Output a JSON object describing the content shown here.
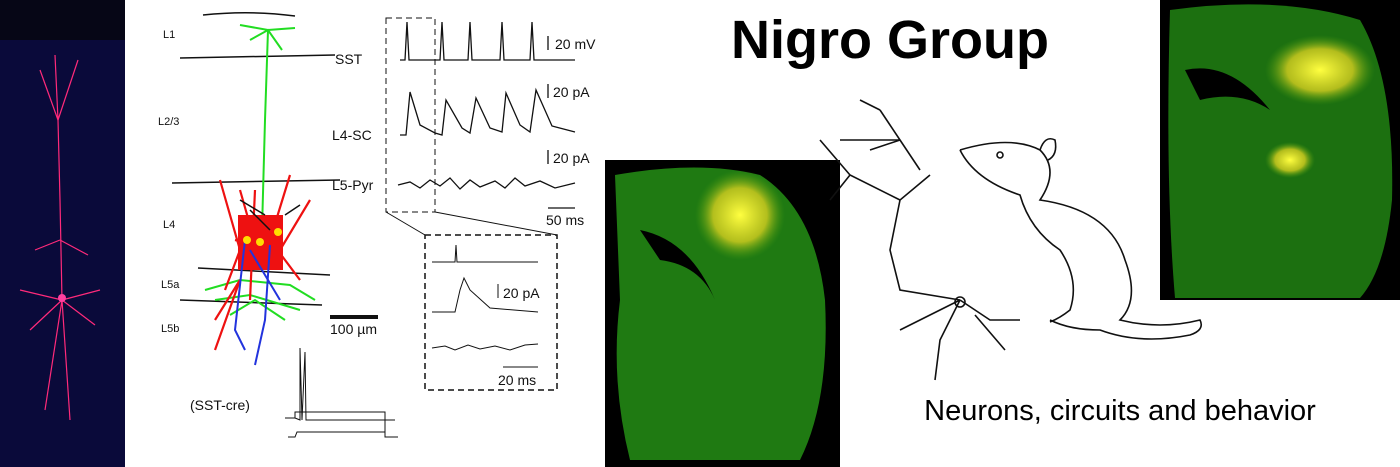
{
  "header": {
    "title": "Nigro Group",
    "subtitle": "Neurons, circuits and behavior"
  },
  "figure": {
    "layers": [
      "L1",
      "L2/3",
      "L4",
      "L5a",
      "L5b"
    ],
    "traces": [
      "SST",
      "L4-SC",
      "L5-Pyr"
    ],
    "scale_bars": [
      "20 mV",
      "20 pA",
      "20 pA",
      "50 ms",
      "100 µm"
    ],
    "genotype": "(SST-cre)",
    "inset_scale_bars": [
      "20 pA",
      "20 ms"
    ]
  }
}
